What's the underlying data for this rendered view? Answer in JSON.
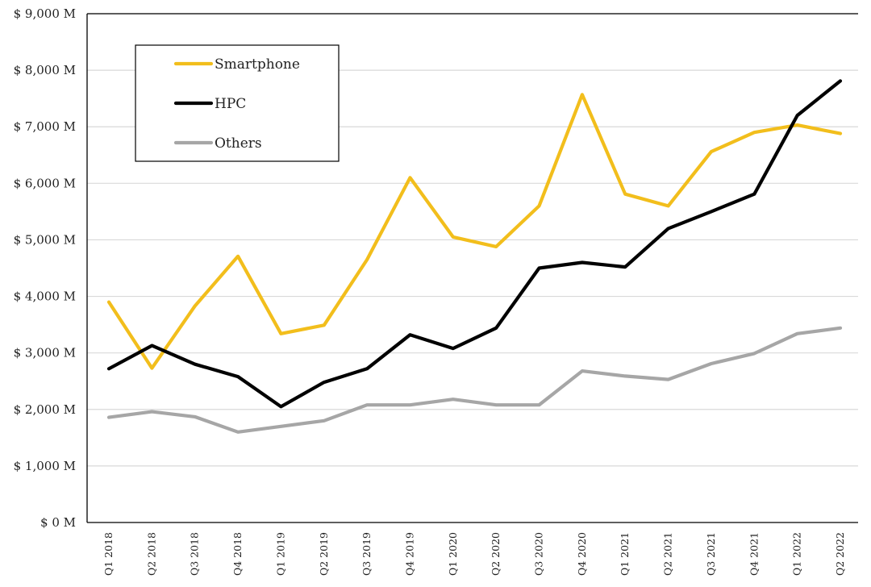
{
  "chart_data": {
    "type": "line",
    "title": "",
    "xlabel": "",
    "ylabel": "",
    "ylim": [
      0,
      9000
    ],
    "y_step": 1000,
    "y_tick_format": "$ {v} M",
    "grid": "horizontal",
    "legend_position": "top-left",
    "categories": [
      "Q1 2018",
      "Q2 2018",
      "Q3 2018",
      "Q4 2018",
      "Q1 2019",
      "Q2 2019",
      "Q3 2019",
      "Q4 2019",
      "Q1 2020",
      "Q2 2020",
      "Q3 2020",
      "Q4 2020",
      "Q1 2021",
      "Q2 2021",
      "Q3 2021",
      "Q4 2021",
      "Q1 2022",
      "Q2 2022"
    ],
    "series": [
      {
        "name": "Smartphone",
        "color": "#f2be1c",
        "values": [
          3900,
          2730,
          3830,
          4710,
          3340,
          3490,
          4650,
          6100,
          5050,
          4880,
          5600,
          7570,
          5810,
          5600,
          6560,
          6900,
          7030,
          6880
        ]
      },
      {
        "name": "HPC",
        "color": "#000000",
        "values": [
          2720,
          3130,
          2800,
          2580,
          2050,
          2480,
          2720,
          3320,
          3080,
          3440,
          4500,
          4600,
          4520,
          5200,
          5500,
          5810,
          7200,
          7810
        ]
      },
      {
        "name": "Others",
        "color": "#a6a6a6",
        "values": [
          1860,
          1960,
          1870,
          1600,
          1700,
          1800,
          2080,
          2080,
          2180,
          2080,
          2080,
          2680,
          2590,
          2530,
          2810,
          2990,
          3340,
          3440
        ]
      }
    ]
  }
}
